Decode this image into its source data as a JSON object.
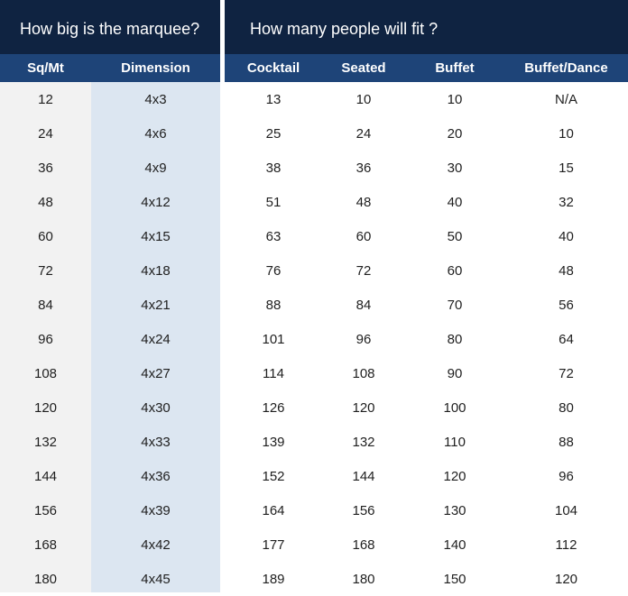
{
  "titles": {
    "left": "How big is the marquee?",
    "right": "How many people will fit ?"
  },
  "headers": {
    "sq": "Sq/Mt",
    "dimension": "Dimension",
    "cocktail": "Cocktail",
    "seated": "Seated",
    "buffet": "Buffet",
    "buffet_dance": "Buffet/Dance"
  },
  "rows": [
    {
      "sq": "12",
      "dimension": "4x3",
      "cocktail": "13",
      "seated": "10",
      "buffet": "10",
      "buffet_dance": "N/A"
    },
    {
      "sq": "24",
      "dimension": "4x6",
      "cocktail": "25",
      "seated": "24",
      "buffet": "20",
      "buffet_dance": "10"
    },
    {
      "sq": "36",
      "dimension": "4x9",
      "cocktail": "38",
      "seated": "36",
      "buffet": "30",
      "buffet_dance": "15"
    },
    {
      "sq": "48",
      "dimension": "4x12",
      "cocktail": "51",
      "seated": "48",
      "buffet": "40",
      "buffet_dance": "32"
    },
    {
      "sq": "60",
      "dimension": "4x15",
      "cocktail": "63",
      "seated": "60",
      "buffet": "50",
      "buffet_dance": "40"
    },
    {
      "sq": "72",
      "dimension": "4x18",
      "cocktail": "76",
      "seated": "72",
      "buffet": "60",
      "buffet_dance": "48"
    },
    {
      "sq": "84",
      "dimension": "4x21",
      "cocktail": "88",
      "seated": "84",
      "buffet": "70",
      "buffet_dance": "56"
    },
    {
      "sq": "96",
      "dimension": "4x24",
      "cocktail": "101",
      "seated": "96",
      "buffet": "80",
      "buffet_dance": "64"
    },
    {
      "sq": "108",
      "dimension": "4x27",
      "cocktail": "114",
      "seated": "108",
      "buffet": "90",
      "buffet_dance": "72"
    },
    {
      "sq": "120",
      "dimension": "4x30",
      "cocktail": "126",
      "seated": "120",
      "buffet": "100",
      "buffet_dance": "80"
    },
    {
      "sq": "132",
      "dimension": "4x33",
      "cocktail": "139",
      "seated": "132",
      "buffet": "110",
      "buffet_dance": "88"
    },
    {
      "sq": "144",
      "dimension": "4x36",
      "cocktail": "152",
      "seated": "144",
      "buffet": "120",
      "buffet_dance": "96"
    },
    {
      "sq": "156",
      "dimension": "4x39",
      "cocktail": "164",
      "seated": "156",
      "buffet": "130",
      "buffet_dance": "104"
    },
    {
      "sq": "168",
      "dimension": "4x42",
      "cocktail": "177",
      "seated": "168",
      "buffet": "140",
      "buffet_dance": "112"
    },
    {
      "sq": "180",
      "dimension": "4x45",
      "cocktail": "189",
      "seated": "180",
      "buffet": "150",
      "buffet_dance": "120"
    }
  ],
  "colors": {
    "title_bg": "#0f2341",
    "header_bg": "#1e4478",
    "sq_column_bg": "#f2f2f2",
    "dimension_column_bg": "#dce6f1"
  }
}
